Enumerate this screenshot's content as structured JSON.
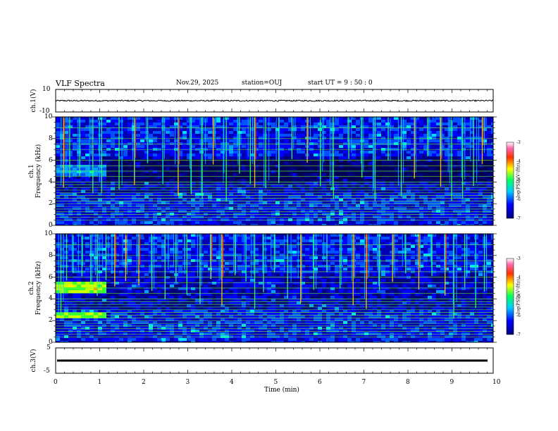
{
  "header": {
    "title": "VLF Spectra",
    "date": "Nov.29, 2025",
    "station": "station=OUJ",
    "start": "start  UT =   9 : 50 : 0"
  },
  "colors": {
    "spectrogram_base": "#000066",
    "band_line": "#66ff33",
    "trace": "#000000"
  },
  "chart_data": [
    {
      "type": "line",
      "name": "ch1-waveform",
      "ylabel": "ch.1(V)",
      "ylim": [
        -10,
        10
      ],
      "yticks": [
        "10",
        "-10"
      ],
      "x_range_min": [
        0,
        10
      ],
      "level": 0,
      "noise_amp": 0.6
    },
    {
      "type": "heatmap",
      "name": "ch1-spectrogram",
      "ylabel_top": "ch.1",
      "ylabel": "Frequency (kHz)",
      "ylim": [
        0,
        10
      ],
      "yticks": [
        "0",
        "2",
        "4",
        "6",
        "8",
        "10"
      ],
      "xlim": [
        0,
        10
      ],
      "colorbar": {
        "range": [
          -7,
          -3
        ],
        "ticks": [
          "-3",
          "-4",
          "-5",
          "-6",
          "-7"
        ],
        "label": "log(PSD)(V²/Hz)"
      },
      "harmonic_lines_khz": [
        0.5,
        0.75,
        1.0,
        1.25,
        1.5,
        1.75,
        2.0,
        2.25,
        2.5,
        2.75,
        3.0,
        3.25,
        3.5,
        3.75,
        4.0,
        4.5,
        5.0,
        5.5,
        6.0,
        7.0,
        7.5,
        8.0,
        9.0
      ],
      "events_min": [
        0.18,
        0.32,
        0.55,
        0.85,
        1.05,
        1.45,
        1.8,
        2.1,
        2.45,
        2.8,
        3.1,
        3.35,
        3.6,
        3.9,
        4.2,
        4.45,
        4.55,
        4.8,
        5.1,
        5.4,
        5.75,
        6.05,
        6.35,
        6.7,
        7.0,
        7.3,
        7.6,
        7.9,
        8.2,
        8.5,
        8.8,
        9.05,
        9.3,
        9.55,
        9.75
      ]
    },
    {
      "type": "heatmap",
      "name": "ch2-spectrogram",
      "ylabel_top": "ch.2",
      "ylabel": "Frequency (kHz)",
      "ylim": [
        0,
        10
      ],
      "yticks": [
        "0",
        "2",
        "4",
        "6",
        "8",
        "10"
      ],
      "xlim": [
        0,
        10
      ],
      "colorbar": {
        "range": [
          -7,
          -3
        ],
        "ticks": [
          "-3",
          "-4",
          "-5",
          "-6",
          "-7"
        ],
        "label": "log(PSD)(V²/Hz)"
      },
      "harmonic_lines_khz": [
        0.5,
        0.75,
        1.0,
        1.25,
        1.5,
        1.75,
        2.0,
        2.25,
        2.5,
        2.75,
        3.0,
        3.25,
        3.5,
        3.75,
        4.0,
        4.5,
        5.0,
        5.5,
        6.0,
        6.5,
        7.0,
        7.5,
        8.0,
        9.0
      ],
      "events_min": [
        0.12,
        0.25,
        0.4,
        0.6,
        0.8,
        0.95,
        1.15,
        1.35,
        1.6,
        1.9,
        2.2,
        2.5,
        2.75,
        3.0,
        3.3,
        3.55,
        3.8,
        4.1,
        4.35,
        4.55,
        4.75,
        5.0,
        5.3,
        5.6,
        5.9,
        6.2,
        6.5,
        6.8,
        7.1,
        7.4,
        7.7,
        8.0,
        8.3,
        8.6,
        8.9,
        9.1,
        9.35,
        9.6,
        9.8
      ]
    },
    {
      "type": "line",
      "name": "ch3-waveform",
      "ylabel": "ch.3(V)",
      "ylim": [
        -5,
        5
      ],
      "yticks": [
        "5",
        "-5"
      ],
      "level": 0,
      "noise_amp": 0.35
    }
  ],
  "xaxis": {
    "label": "Time (min)",
    "ticks": [
      "0",
      "1",
      "2",
      "3",
      "4",
      "5",
      "6",
      "7",
      "8",
      "9",
      "10"
    ],
    "range": [
      0,
      10
    ]
  }
}
